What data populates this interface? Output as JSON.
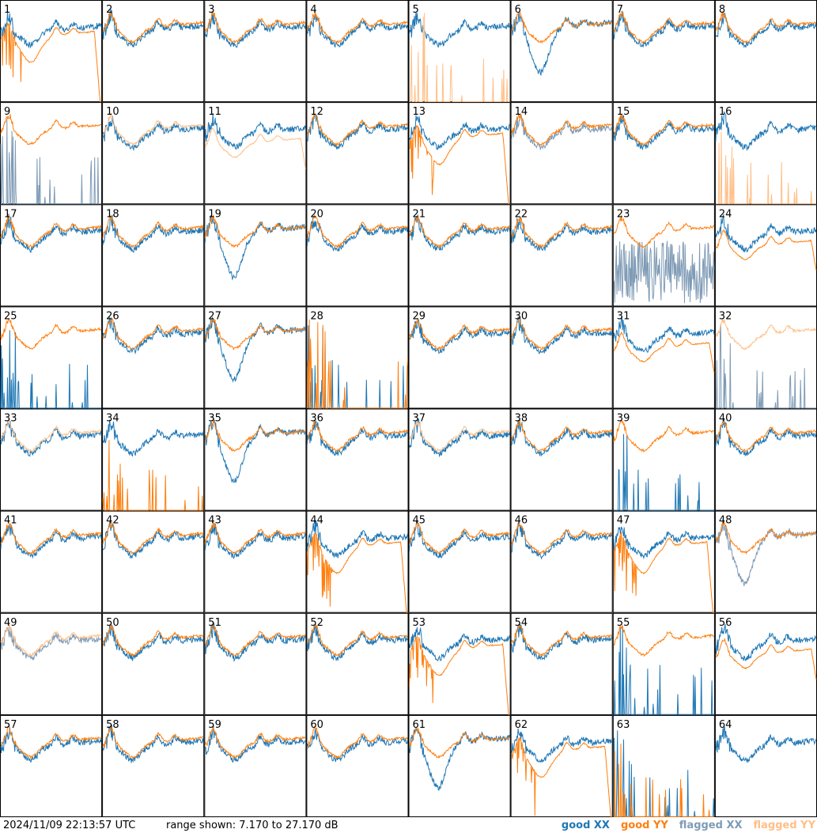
{
  "footer": {
    "timestamp": "2024/11/09 22:13:57 UTC",
    "range_text": "range shown: 7.170 to 27.170 dB"
  },
  "legend": [
    {
      "label": "good XX",
      "color": "#1f77b4"
    },
    {
      "label": "good YY",
      "color": "#ff7f0e"
    },
    {
      "label": "flagged XX",
      "color": "#7f9bb5"
    },
    {
      "label": "flagged YY",
      "color": "#ffbf87"
    }
  ],
  "chart_data": {
    "type": "line",
    "layout": "small-multiples 8x8",
    "ylim": [
      7.17,
      27.17
    ],
    "yunit": "dB",
    "panels": [
      {
        "id": "1",
        "xx": "good",
        "yy": "good",
        "xx_shape": "normal",
        "yy_shape": "droop"
      },
      {
        "id": "2",
        "xx": "good",
        "yy": "good",
        "xx_shape": "normal",
        "yy_shape": "normal"
      },
      {
        "id": "3",
        "xx": "good",
        "yy": "good",
        "xx_shape": "normal",
        "yy_shape": "normal"
      },
      {
        "id": "4",
        "xx": "good",
        "yy": "good",
        "xx_shape": "normal",
        "yy_shape": "normal"
      },
      {
        "id": "5",
        "xx": "good",
        "yy": "flagged",
        "xx_shape": "normal",
        "yy_shape": "spikes"
      },
      {
        "id": "6",
        "xx": "good",
        "yy": "good",
        "xx_shape": "dip",
        "yy_shape": "normal"
      },
      {
        "id": "7",
        "xx": "good",
        "yy": "good",
        "xx_shape": "normal",
        "yy_shape": "normal"
      },
      {
        "id": "8",
        "xx": "good",
        "yy": "good",
        "xx_shape": "normal",
        "yy_shape": "normal"
      },
      {
        "id": "9",
        "xx": "flagged",
        "yy": "good",
        "xx_shape": "spikes",
        "yy_shape": "normal"
      },
      {
        "id": "10",
        "xx": "good",
        "yy": "flagged",
        "xx_shape": "normal",
        "yy_shape": "normal"
      },
      {
        "id": "11",
        "xx": "good",
        "yy": "flagged",
        "xx_shape": "normal",
        "yy_shape": "low"
      },
      {
        "id": "12",
        "xx": "good",
        "yy": "good",
        "xx_shape": "normal",
        "yy_shape": "normal"
      },
      {
        "id": "13",
        "xx": "good",
        "yy": "good",
        "xx_shape": "normal",
        "yy_shape": "droop"
      },
      {
        "id": "14",
        "xx": "flagged",
        "yy": "good",
        "xx_shape": "normal",
        "yy_shape": "normal"
      },
      {
        "id": "15",
        "xx": "good",
        "yy": "good",
        "xx_shape": "normal",
        "yy_shape": "normal"
      },
      {
        "id": "16",
        "xx": "good",
        "yy": "flagged",
        "xx_shape": "normal",
        "yy_shape": "spikes"
      },
      {
        "id": "17",
        "xx": "good",
        "yy": "good",
        "xx_shape": "normal",
        "yy_shape": "normal"
      },
      {
        "id": "18",
        "xx": "good",
        "yy": "good",
        "xx_shape": "normal",
        "yy_shape": "normal"
      },
      {
        "id": "19",
        "xx": "good",
        "yy": "good",
        "xx_shape": "dip",
        "yy_shape": "normal"
      },
      {
        "id": "20",
        "xx": "good",
        "yy": "good",
        "xx_shape": "normal",
        "yy_shape": "normal"
      },
      {
        "id": "21",
        "xx": "good",
        "yy": "good",
        "xx_shape": "normal",
        "yy_shape": "normal"
      },
      {
        "id": "22",
        "xx": "good",
        "yy": "good",
        "xx_shape": "normal",
        "yy_shape": "normal"
      },
      {
        "id": "23",
        "xx": "flagged",
        "yy": "good",
        "xx_shape": "noise",
        "yy_shape": "normal"
      },
      {
        "id": "24",
        "xx": "good",
        "yy": "good",
        "xx_shape": "normal",
        "yy_shape": "low"
      },
      {
        "id": "25",
        "xx": "good",
        "yy": "good",
        "xx_shape": "spikes",
        "yy_shape": "normal"
      },
      {
        "id": "26",
        "xx": "good",
        "yy": "good",
        "xx_shape": "normal",
        "yy_shape": "normal"
      },
      {
        "id": "27",
        "xx": "good",
        "yy": "good",
        "xx_shape": "dip",
        "yy_shape": "normal"
      },
      {
        "id": "28",
        "xx": "good",
        "yy": "good",
        "xx_shape": "spikes",
        "yy_shape": "spikes"
      },
      {
        "id": "29",
        "xx": "good",
        "yy": "good",
        "xx_shape": "normal",
        "yy_shape": "normal"
      },
      {
        "id": "30",
        "xx": "good",
        "yy": "good",
        "xx_shape": "normal",
        "yy_shape": "normal"
      },
      {
        "id": "31",
        "xx": "good",
        "yy": "good",
        "xx_shape": "normal",
        "yy_shape": "low"
      },
      {
        "id": "32",
        "xx": "flagged",
        "yy": "flagged",
        "xx_shape": "spikes",
        "yy_shape": "normal"
      },
      {
        "id": "33",
        "xx": "good",
        "yy": "flagged",
        "xx_shape": "normal",
        "yy_shape": "normal"
      },
      {
        "id": "34",
        "xx": "good",
        "yy": "good",
        "xx_shape": "normal",
        "yy_shape": "spikes"
      },
      {
        "id": "35",
        "xx": "good",
        "yy": "good",
        "xx_shape": "dip",
        "yy_shape": "normal"
      },
      {
        "id": "36",
        "xx": "good",
        "yy": "good",
        "xx_shape": "normal",
        "yy_shape": "normal"
      },
      {
        "id": "37",
        "xx": "good",
        "yy": "flagged",
        "xx_shape": "normal",
        "yy_shape": "normal"
      },
      {
        "id": "38",
        "xx": "good",
        "yy": "good",
        "xx_shape": "normal",
        "yy_shape": "normal"
      },
      {
        "id": "39",
        "xx": "good",
        "yy": "good",
        "xx_shape": "spikes",
        "yy_shape": "normal"
      },
      {
        "id": "40",
        "xx": "good",
        "yy": "good",
        "xx_shape": "normal",
        "yy_shape": "normal"
      },
      {
        "id": "41",
        "xx": "good",
        "yy": "good",
        "xx_shape": "normal",
        "yy_shape": "normal"
      },
      {
        "id": "42",
        "xx": "good",
        "yy": "good",
        "xx_shape": "normal",
        "yy_shape": "normal"
      },
      {
        "id": "43",
        "xx": "good",
        "yy": "good",
        "xx_shape": "normal",
        "yy_shape": "normal"
      },
      {
        "id": "44",
        "xx": "good",
        "yy": "good",
        "xx_shape": "normal",
        "yy_shape": "droop"
      },
      {
        "id": "45",
        "xx": "good",
        "yy": "good",
        "xx_shape": "normal",
        "yy_shape": "normal"
      },
      {
        "id": "46",
        "xx": "good",
        "yy": "good",
        "xx_shape": "normal",
        "yy_shape": "normal"
      },
      {
        "id": "47",
        "xx": "good",
        "yy": "good",
        "xx_shape": "normal",
        "yy_shape": "droop"
      },
      {
        "id": "48",
        "xx": "flagged",
        "yy": "good",
        "xx_shape": "dip",
        "yy_shape": "normal"
      },
      {
        "id": "49",
        "xx": "flagged",
        "yy": "flagged",
        "xx_shape": "normal",
        "yy_shape": "normal"
      },
      {
        "id": "50",
        "xx": "good",
        "yy": "good",
        "xx_shape": "normal",
        "yy_shape": "normal"
      },
      {
        "id": "51",
        "xx": "good",
        "yy": "good",
        "xx_shape": "normal",
        "yy_shape": "normal"
      },
      {
        "id": "52",
        "xx": "good",
        "yy": "good",
        "xx_shape": "normal",
        "yy_shape": "normal"
      },
      {
        "id": "53",
        "xx": "good",
        "yy": "good",
        "xx_shape": "normal",
        "yy_shape": "droop"
      },
      {
        "id": "54",
        "xx": "good",
        "yy": "good",
        "xx_shape": "normal",
        "yy_shape": "normal"
      },
      {
        "id": "55",
        "xx": "good",
        "yy": "good",
        "xx_shape": "spikes",
        "yy_shape": "normal"
      },
      {
        "id": "56",
        "xx": "good",
        "yy": "good",
        "xx_shape": "normal",
        "yy_shape": "low"
      },
      {
        "id": "57",
        "xx": "good",
        "yy": "good",
        "xx_shape": "normal",
        "yy_shape": "normal"
      },
      {
        "id": "58",
        "xx": "good",
        "yy": "good",
        "xx_shape": "normal",
        "yy_shape": "normal"
      },
      {
        "id": "59",
        "xx": "good",
        "yy": "good",
        "xx_shape": "normal",
        "yy_shape": "normal"
      },
      {
        "id": "60",
        "xx": "good",
        "yy": "good",
        "xx_shape": "normal",
        "yy_shape": "normal"
      },
      {
        "id": "61",
        "xx": "good",
        "yy": "good",
        "xx_shape": "dip",
        "yy_shape": "normal"
      },
      {
        "id": "62",
        "xx": "good",
        "yy": "good",
        "xx_shape": "normal",
        "yy_shape": "droop"
      },
      {
        "id": "63",
        "xx": "good",
        "yy": "good",
        "xx_shape": "spikes",
        "yy_shape": "spikes"
      },
      {
        "id": "64",
        "xx": "good",
        "yy": "good",
        "xx_shape": "normal",
        "yy_shape": "none"
      }
    ]
  }
}
